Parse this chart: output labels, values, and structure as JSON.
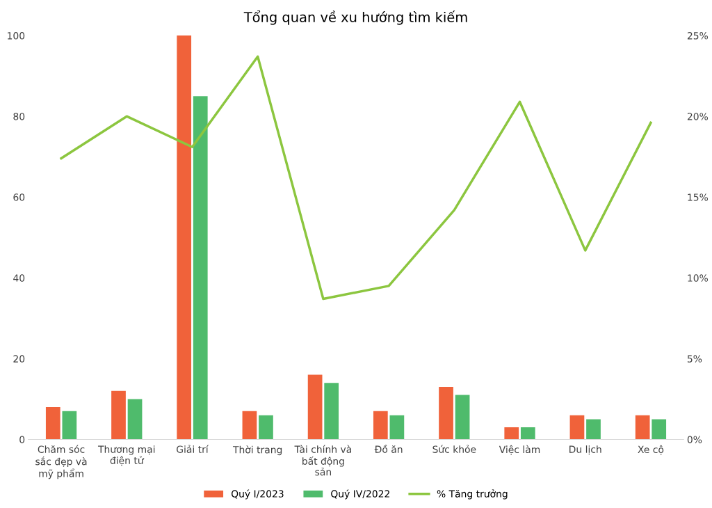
{
  "chart_data": {
    "type": "bar",
    "title": "Tổng quan về xu hướng tìm kiếm",
    "categories": [
      "Chăm sóc sắc đẹp và mỹ phẩm",
      "Thương mại điện tử",
      "Giải trí",
      "Thời trang",
      "Tài chính và bất động sản",
      "Đồ ăn",
      "Sức khỏe",
      "Việc làm",
      "Du lịch",
      "Xe cộ"
    ],
    "series": [
      {
        "name": "Quý I/2023",
        "color": "#f0623a",
        "values": [
          8,
          12,
          100,
          7,
          16,
          7,
          13,
          3,
          6,
          6
        ]
      },
      {
        "name": "Quý IV/2022",
        "color": "#4fbb6c",
        "values": [
          7,
          10,
          85,
          6,
          14,
          6,
          11,
          3,
          5,
          5
        ]
      },
      {
        "name": "% Tăng trưởng",
        "type": "line",
        "axis": "y2",
        "color": "#8cc63f",
        "values": [
          17.4,
          20.0,
          18.1,
          23.7,
          8.7,
          9.5,
          14.2,
          20.9,
          11.7,
          19.6
        ]
      }
    ],
    "ylim": [
      0,
      100
    ],
    "yticks": [
      0,
      20,
      40,
      60,
      80,
      100
    ],
    "y2lim": [
      0,
      25
    ],
    "y2ticks": [
      {
        "value": 0,
        "label": "0%"
      },
      {
        "value": 5,
        "label": "5%"
      },
      {
        "value": 10,
        "label": "10%"
      },
      {
        "value": 15,
        "label": "15%"
      },
      {
        "value": 20,
        "label": "20%"
      },
      {
        "value": 25,
        "label": "25%"
      }
    ],
    "grid": false,
    "legend": "bottom",
    "marker": "none"
  }
}
